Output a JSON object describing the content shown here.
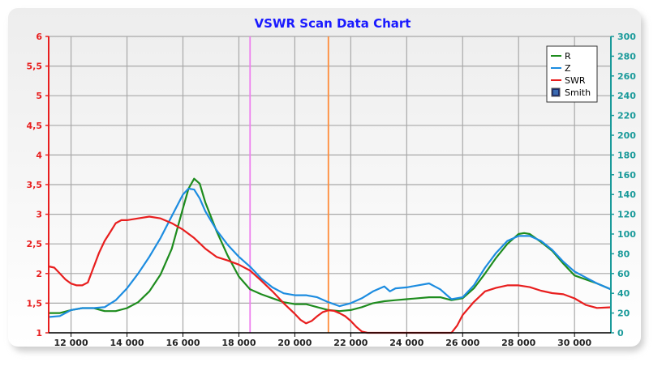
{
  "chart_data": {
    "type": "line",
    "title": "VSWR Scan Data Chart",
    "x_ticks": [
      "12 000",
      "14 000",
      "16 000",
      "18 000",
      "20 000",
      "22 000",
      "24 000",
      "26 000",
      "28 000",
      "30 000"
    ],
    "x_tick_values": [
      12000,
      14000,
      16000,
      18000,
      20000,
      22000,
      24000,
      26000,
      28000,
      30000
    ],
    "xlim": [
      11200,
      31300
    ],
    "y_left_ticks": [
      "1",
      "1,5",
      "2",
      "2,5",
      "3",
      "3,5",
      "4",
      "4,5",
      "5",
      "5,5",
      "6"
    ],
    "y_left_tick_values": [
      1,
      1.5,
      2,
      2.5,
      3,
      3.5,
      4,
      4.5,
      5,
      5.5,
      6
    ],
    "ylim_left": [
      1,
      6
    ],
    "y_right_ticks": [
      "0",
      "20",
      "40",
      "60",
      "80",
      "100",
      "120",
      "140",
      "160",
      "180",
      "200",
      "220",
      "240",
      "260",
      "280",
      "300"
    ],
    "y_right_tick_values": [
      0,
      20,
      40,
      60,
      80,
      100,
      120,
      140,
      160,
      180,
      200,
      220,
      240,
      260,
      280,
      300
    ],
    "ylim_right": [
      0,
      300
    ],
    "grid": true,
    "legend_position": "top-right",
    "markers": [
      {
        "x": 18400,
        "color": "#ee82ee"
      },
      {
        "x": 21200,
        "color": "#ff8c3a"
      }
    ],
    "series": [
      {
        "name": "R",
        "axis": "right",
        "color": "#1e8c1e",
        "x": [
          11200,
          11600,
          12000,
          12400,
          12800,
          13200,
          13600,
          14000,
          14400,
          14800,
          15200,
          15600,
          16000,
          16200,
          16400,
          16600,
          16800,
          17200,
          17600,
          18000,
          18400,
          18800,
          19200,
          19600,
          20000,
          20400,
          20800,
          21200,
          21600,
          22000,
          22400,
          22800,
          23200,
          23600,
          24000,
          24400,
          24800,
          25200,
          25600,
          26000,
          26400,
          26800,
          27200,
          27600,
          28000,
          28200,
          28400,
          28800,
          29200,
          29600,
          30000,
          30400,
          30800,
          31300
        ],
        "values": [
          20,
          20,
          23,
          25,
          25,
          22,
          22,
          25,
          31,
          42,
          59,
          85,
          126,
          146,
          156,
          151,
          132,
          103,
          78,
          57,
          44,
          39,
          35,
          31,
          29,
          29,
          26,
          23,
          22,
          23,
          26,
          30,
          32,
          33,
          34,
          35,
          36,
          36,
          33,
          35,
          45,
          60,
          76,
          90,
          100,
          101,
          100,
          92,
          83,
          70,
          58,
          54,
          50,
          44
        ]
      },
      {
        "name": "Z",
        "axis": "right",
        "color": "#1c8ce0",
        "x": [
          11200,
          11600,
          12000,
          12400,
          12800,
          13200,
          13600,
          14000,
          14400,
          14800,
          15200,
          15600,
          16000,
          16200,
          16400,
          16600,
          16800,
          17200,
          17600,
          18000,
          18400,
          18800,
          19200,
          19600,
          20000,
          20400,
          20800,
          21200,
          21600,
          22000,
          22400,
          22800,
          23200,
          23400,
          23600,
          24000,
          24400,
          24800,
          25000,
          25200,
          25600,
          26000,
          26400,
          26800,
          27200,
          27600,
          28000,
          28400,
          28800,
          29200,
          29600,
          30000,
          30400,
          30800,
          31300
        ],
        "values": [
          16,
          17,
          23,
          25,
          25,
          26,
          33,
          45,
          60,
          77,
          96,
          118,
          140,
          146,
          145,
          136,
          123,
          104,
          89,
          77,
          67,
          55,
          46,
          40,
          38,
          38,
          36,
          31,
          27,
          30,
          35,
          42,
          47,
          42,
          45,
          46,
          48,
          50,
          47,
          44,
          34,
          36,
          48,
          66,
          81,
          93,
          98,
          98,
          93,
          84,
          72,
          62,
          56,
          50,
          44
        ]
      },
      {
        "name": "SWR",
        "axis": "left",
        "color": "#e81e1e",
        "x": [
          11200,
          11400,
          11600,
          11800,
          12000,
          12200,
          12400,
          12600,
          12800,
          13000,
          13200,
          13400,
          13600,
          13800,
          14000,
          14400,
          14800,
          15200,
          15600,
          16000,
          16400,
          16800,
          17200,
          17600,
          18000,
          18400,
          18800,
          19200,
          19600,
          20000,
          20200,
          20400,
          20600,
          20800,
          21000,
          21200,
          21400,
          21600,
          21800,
          22000,
          22200,
          22400,
          22600,
          22800,
          23200,
          23600,
          24000,
          24400,
          24800,
          25200,
          25400,
          25600,
          25800,
          26000,
          26400,
          26800,
          27200,
          27600,
          28000,
          28400,
          28800,
          29200,
          29600,
          30000,
          30400,
          30800,
          31300
        ],
        "values": [
          2.12,
          2.1,
          2.0,
          1.9,
          1.83,
          1.8,
          1.8,
          1.85,
          2.1,
          2.35,
          2.55,
          2.7,
          2.85,
          2.9,
          2.9,
          2.93,
          2.96,
          2.93,
          2.85,
          2.74,
          2.6,
          2.42,
          2.28,
          2.22,
          2.15,
          2.05,
          1.88,
          1.7,
          1.5,
          1.32,
          1.22,
          1.16,
          1.2,
          1.28,
          1.35,
          1.38,
          1.37,
          1.33,
          1.28,
          1.2,
          1.1,
          1.02,
          1.0,
          1.0,
          1.0,
          1.0,
          1.0,
          1.0,
          1.0,
          1.0,
          1.0,
          1.0,
          1.12,
          1.3,
          1.52,
          1.7,
          1.76,
          1.8,
          1.8,
          1.77,
          1.71,
          1.67,
          1.65,
          1.58,
          1.47,
          1.42,
          1.43
        ]
      }
    ],
    "legend": [
      {
        "label": "R",
        "color": "#1e8c1e",
        "kind": "line"
      },
      {
        "label": "Z",
        "color": "#1c8ce0",
        "kind": "line"
      },
      {
        "label": "SWR",
        "color": "#e81e1e",
        "kind": "line"
      },
      {
        "label": "Smith",
        "color": "#1a2a6a",
        "kind": "box"
      }
    ],
    "colors": {
      "left_axis": "#e81e1e",
      "right_axis": "#1a9a9a",
      "title": "#1a1aff",
      "grid": "#a8a8a8"
    }
  }
}
